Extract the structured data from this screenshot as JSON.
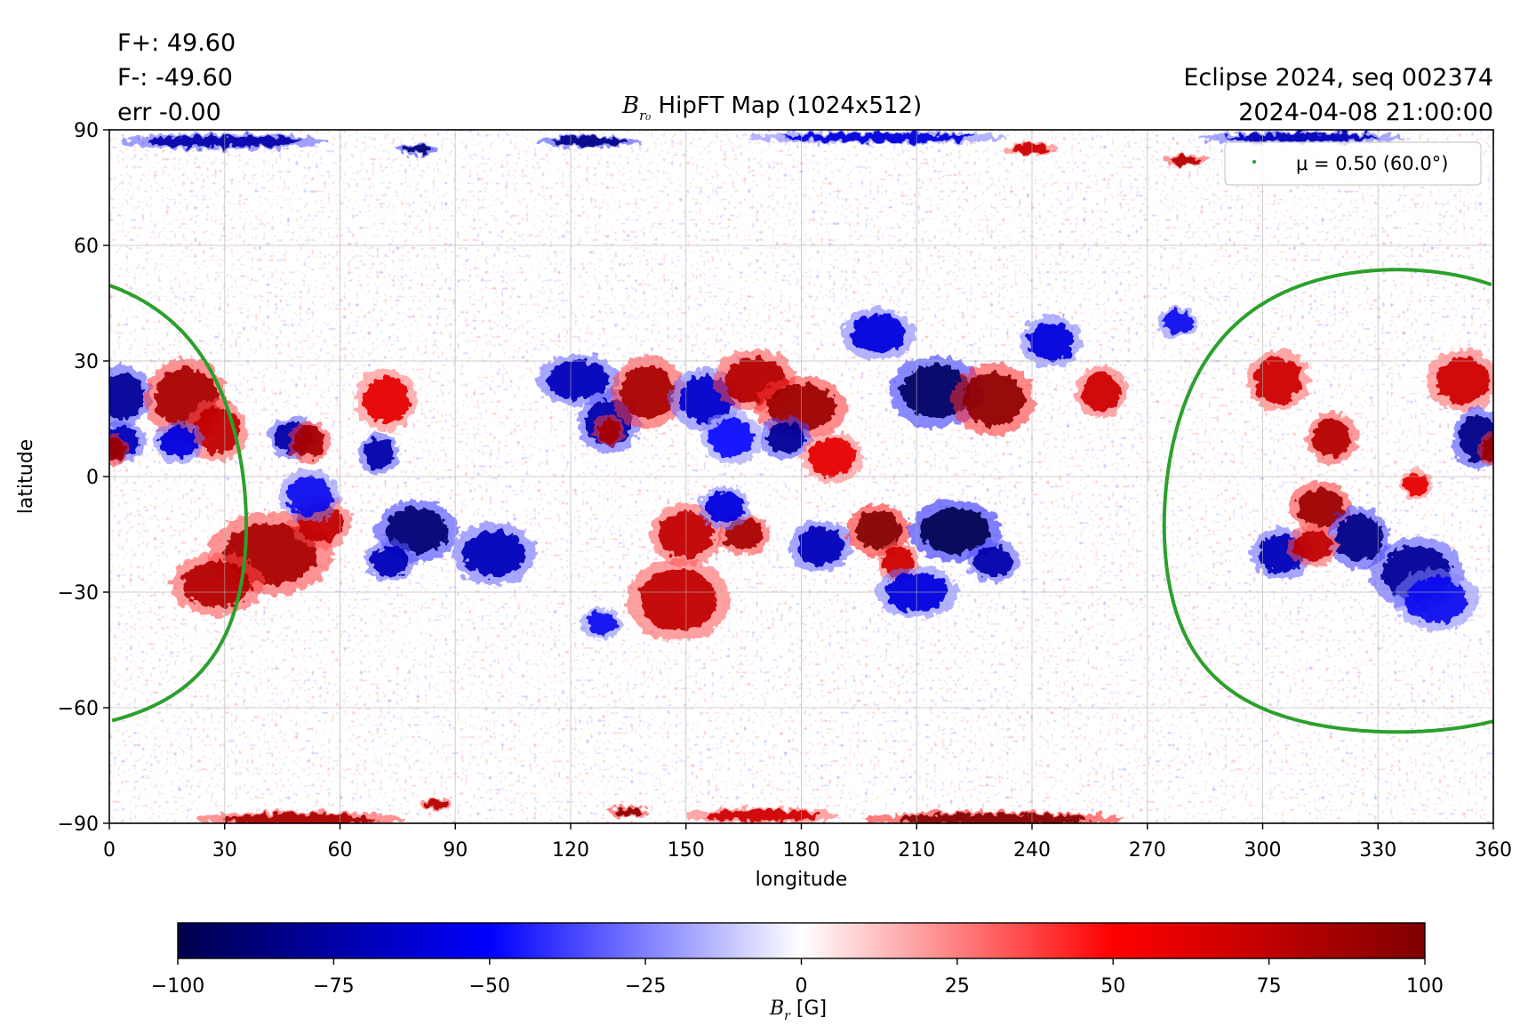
{
  "header": {
    "flux_positive": "F+: 49.60",
    "flux_negative": "F-: -49.60",
    "flux_error": "err -0.00",
    "event": "Eclipse 2024, seq 002374",
    "datetime": "2024-04-08 21:00:00"
  },
  "chart_data": {
    "type": "heatmap",
    "title": {
      "symbol": "B",
      "subscript": "r₀",
      "text": " HipFT Map (1024x512)"
    },
    "xlabel": "longitude",
    "ylabel": "latitude",
    "xlim": [
      0,
      360
    ],
    "ylim": [
      -90,
      90
    ],
    "xticks": [
      0,
      30,
      60,
      90,
      120,
      150,
      180,
      210,
      240,
      270,
      300,
      330,
      360
    ],
    "yticks": [
      90,
      60,
      30,
      0,
      -30,
      -60,
      -90
    ],
    "yticklabels": [
      "90",
      "60",
      "30",
      "0",
      "−30",
      "−60",
      "−90"
    ],
    "grid": true,
    "colormap": {
      "name": "seismic",
      "stops": [
        "#00004c",
        "#0000ff",
        "#ffffff",
        "#ff0000",
        "#7f0000"
      ],
      "vmin": -100,
      "vmax": 100,
      "ticks": [
        -100,
        -75,
        -50,
        -25,
        0,
        25,
        50,
        75,
        100
      ],
      "ticklabels": [
        "−100",
        "−75",
        "−50",
        "−25",
        "0",
        "25",
        "50",
        "75",
        "100"
      ],
      "label": {
        "symbol": "B",
        "subscript": "r",
        "unit": " [G]"
      }
    },
    "legend": {
      "label": "μ = 0.50 (60.0°)",
      "placement": "upper right",
      "color": "#2ca02c"
    },
    "mu_contour": {
      "color": "#2ca02c",
      "lon_center": 335,
      "lat_center": -6.3,
      "angular_radius_deg": 60
    },
    "active_regions": [
      {
        "lon": 3,
        "lat": 21,
        "b": -80,
        "w": 6,
        "h": 6
      },
      {
        "lon": 3,
        "lat": 9,
        "b": -70,
        "w": 5,
        "h": 4
      },
      {
        "lon": 1,
        "lat": 7,
        "b": 90,
        "w": 3,
        "h": 3
      },
      {
        "lon": 20,
        "lat": 20,
        "b": 85,
        "w": 8,
        "h": 8
      },
      {
        "lon": 28,
        "lat": 12,
        "b": 75,
        "w": 6,
        "h": 6
      },
      {
        "lon": 18,
        "lat": 9,
        "b": -60,
        "w": 5,
        "h": 4
      },
      {
        "lon": 48,
        "lat": 10,
        "b": -75,
        "w": 5,
        "h": 4
      },
      {
        "lon": 52,
        "lat": 9,
        "b": 85,
        "w": 4,
        "h": 4
      },
      {
        "lon": 42,
        "lat": -20,
        "b": 85,
        "w": 12,
        "h": 8
      },
      {
        "lon": 28,
        "lat": -28,
        "b": 80,
        "w": 9,
        "h": 6
      },
      {
        "lon": 55,
        "lat": -12,
        "b": 75,
        "w": 6,
        "h": 5
      },
      {
        "lon": 52,
        "lat": -5,
        "b": -55,
        "w": 6,
        "h": 5
      },
      {
        "lon": 70,
        "lat": 6,
        "b": -75,
        "w": 4,
        "h": 4
      },
      {
        "lon": 72,
        "lat": 20,
        "b": 60,
        "w": 6,
        "h": 6
      },
      {
        "lon": 80,
        "lat": -14,
        "b": -90,
        "w": 8,
        "h": 6
      },
      {
        "lon": 73,
        "lat": -22,
        "b": -70,
        "w": 5,
        "h": 4
      },
      {
        "lon": 100,
        "lat": -20,
        "b": -70,
        "w": 8,
        "h": 6
      },
      {
        "lon": 122,
        "lat": 25,
        "b": -70,
        "w": 8,
        "h": 5
      },
      {
        "lon": 130,
        "lat": 14,
        "b": -75,
        "w": 6,
        "h": 6
      },
      {
        "lon": 130,
        "lat": 12,
        "b": 85,
        "w": 3,
        "h": 3
      },
      {
        "lon": 140,
        "lat": 22,
        "b": 85,
        "w": 7,
        "h": 7
      },
      {
        "lon": 155,
        "lat": 20,
        "b": -65,
        "w": 7,
        "h": 6
      },
      {
        "lon": 162,
        "lat": 10,
        "b": -50,
        "w": 6,
        "h": 5
      },
      {
        "lon": 168,
        "lat": 25,
        "b": 80,
        "w": 8,
        "h": 6
      },
      {
        "lon": 180,
        "lat": 18,
        "b": 90,
        "w": 9,
        "h": 6
      },
      {
        "lon": 176,
        "lat": 10,
        "b": -80,
        "w": 5,
        "h": 4
      },
      {
        "lon": 188,
        "lat": 5,
        "b": 60,
        "w": 6,
        "h": 5
      },
      {
        "lon": 200,
        "lat": 37,
        "b": -60,
        "w": 7,
        "h": 5
      },
      {
        "lon": 215,
        "lat": 22,
        "b": -95,
        "w": 9,
        "h": 7
      },
      {
        "lon": 230,
        "lat": 20,
        "b": 95,
        "w": 8,
        "h": 7
      },
      {
        "lon": 245,
        "lat": 35,
        "b": -60,
        "w": 6,
        "h": 5
      },
      {
        "lon": 258,
        "lat": 22,
        "b": 70,
        "w": 5,
        "h": 5
      },
      {
        "lon": 150,
        "lat": -15,
        "b": 75,
        "w": 7,
        "h": 6
      },
      {
        "lon": 165,
        "lat": -15,
        "b": 85,
        "w": 5,
        "h": 4
      },
      {
        "lon": 148,
        "lat": -32,
        "b": 75,
        "w": 10,
        "h": 8
      },
      {
        "lon": 160,
        "lat": -8,
        "b": -60,
        "w": 5,
        "h": 4
      },
      {
        "lon": 185,
        "lat": -18,
        "b": -70,
        "w": 6,
        "h": 5
      },
      {
        "lon": 200,
        "lat": -14,
        "b": 100,
        "w": 6,
        "h": 5
      },
      {
        "lon": 205,
        "lat": -22,
        "b": 70,
        "w": 4,
        "h": 4
      },
      {
        "lon": 220,
        "lat": -14,
        "b": -100,
        "w": 9,
        "h": 6
      },
      {
        "lon": 230,
        "lat": -22,
        "b": -75,
        "w": 5,
        "h": 4
      },
      {
        "lon": 210,
        "lat": -30,
        "b": -60,
        "w": 8,
        "h": 5
      },
      {
        "lon": 128,
        "lat": -38,
        "b": -55,
        "w": 4,
        "h": 3
      },
      {
        "lon": 278,
        "lat": 40,
        "b": -55,
        "w": 4,
        "h": 3
      },
      {
        "lon": 304,
        "lat": 25,
        "b": 70,
        "w": 6,
        "h": 6
      },
      {
        "lon": 318,
        "lat": 10,
        "b": 80,
        "w": 5,
        "h": 5
      },
      {
        "lon": 315,
        "lat": -8,
        "b": 90,
        "w": 6,
        "h": 5
      },
      {
        "lon": 325,
        "lat": -16,
        "b": -85,
        "w": 6,
        "h": 6
      },
      {
        "lon": 305,
        "lat": -20,
        "b": -70,
        "w": 6,
        "h": 5
      },
      {
        "lon": 313,
        "lat": -18,
        "b": 75,
        "w": 5,
        "h": 4
      },
      {
        "lon": 352,
        "lat": 25,
        "b": 70,
        "w": 7,
        "h": 6
      },
      {
        "lon": 356,
        "lat": 10,
        "b": -85,
        "w": 5,
        "h": 6
      },
      {
        "lon": 359,
        "lat": 7,
        "b": 90,
        "w": 2,
        "h": 3
      },
      {
        "lon": 340,
        "lat": -25,
        "b": -80,
        "w": 9,
        "h": 7
      },
      {
        "lon": 345,
        "lat": -32,
        "b": -55,
        "w": 8,
        "h": 6
      },
      {
        "lon": 340,
        "lat": -2,
        "b": 60,
        "w": 3,
        "h": 3
      },
      {
        "lon": 50,
        "lat": -89,
        "b": 85,
        "w": 20,
        "h": 1.5
      },
      {
        "lon": 135,
        "lat": -87,
        "b": 95,
        "w": 4,
        "h": 1.2
      },
      {
        "lon": 230,
        "lat": -89,
        "b": 100,
        "w": 25,
        "h": 1.5
      },
      {
        "lon": 85,
        "lat": -85,
        "b": 80,
        "w": 3,
        "h": 1.2
      },
      {
        "lon": 170,
        "lat": -88,
        "b": 70,
        "w": 15,
        "h": 1.5
      },
      {
        "lon": 30,
        "lat": 87,
        "b": -75,
        "w": 20,
        "h": 1.5
      },
      {
        "lon": 80,
        "lat": 85,
        "b": -90,
        "w": 4,
        "h": 1.2
      },
      {
        "lon": 125,
        "lat": 87,
        "b": -85,
        "w": 10,
        "h": 1.2
      },
      {
        "lon": 200,
        "lat": 88,
        "b": -60,
        "w": 25,
        "h": 1.2
      },
      {
        "lon": 310,
        "lat": 88,
        "b": -70,
        "w": 20,
        "h": 1.2
      },
      {
        "lon": 240,
        "lat": 85,
        "b": 70,
        "w": 5,
        "h": 1.2
      },
      {
        "lon": 280,
        "lat": 82,
        "b": 80,
        "w": 4,
        "h": 1.2
      }
    ]
  }
}
